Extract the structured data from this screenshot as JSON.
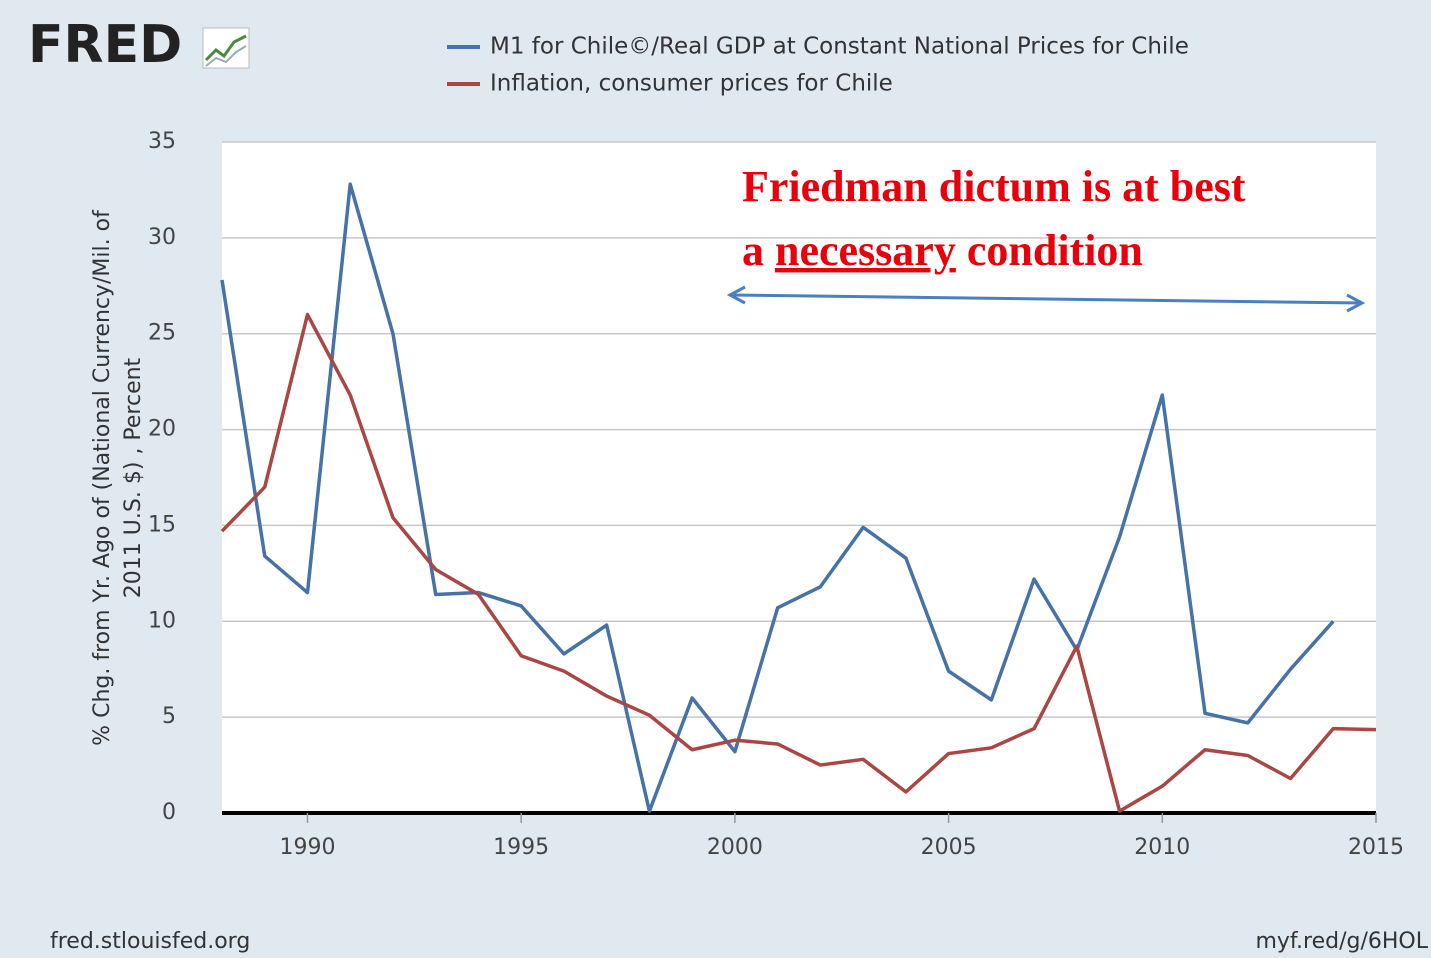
{
  "logo": "FRED",
  "footer": {
    "left": "fred.stlouisfed.org",
    "right": "myf.red/g/6HOL"
  },
  "chart_data": {
    "type": "line",
    "y_label": [
      "% Chg. from Yr. Ago of (National Currency/Mil. of",
      "2011 U.S. $) , Percent"
    ],
    "annotation": {
      "line1": "Friedman dictum is at best",
      "line2": [
        "a ",
        "necessary",
        " condition"
      ]
    },
    "x": [
      1988,
      1989,
      1990,
      1991,
      1992,
      1993,
      1994,
      1995,
      1996,
      1997,
      1998,
      1999,
      2000,
      2001,
      2002,
      2003,
      2004,
      2005,
      2006,
      2007,
      2008,
      2009,
      2010,
      2011,
      2012,
      2013,
      2014,
      2015
    ],
    "series": [
      {
        "name": "M1 for Chile©/Real GDP at Constant National Prices for Chile",
        "color": "#4572a7",
        "values": [
          27.8,
          13.4,
          11.5,
          32.8,
          25.0,
          11.4,
          11.5,
          10.8,
          8.3,
          9.8,
          0.1,
          6.0,
          3.2,
          10.7,
          11.8,
          14.9,
          13.3,
          7.4,
          5.9,
          12.2,
          8.5,
          14.4,
          21.8,
          5.2,
          4.7,
          7.5,
          10.0,
          null
        ]
      },
      {
        "name": "Inflation, consumer prices for Chile",
        "color": "#aa4643",
        "values": [
          14.7,
          17.0,
          26.0,
          21.8,
          15.4,
          12.7,
          11.4,
          8.2,
          7.4,
          6.1,
          5.1,
          3.3,
          3.8,
          3.6,
          2.5,
          2.8,
          1.1,
          3.1,
          3.4,
          4.4,
          8.7,
          0.1,
          1.4,
          3.3,
          3.0,
          1.8,
          4.4,
          4.35
        ]
      }
    ],
    "xlim": [
      1988,
      2015
    ],
    "xticks": [
      1990,
      1995,
      2000,
      2005,
      2010,
      2015
    ],
    "ylim": [
      0,
      35
    ],
    "yticks": [
      0,
      5,
      10,
      15,
      20,
      25,
      30,
      35
    ],
    "grid": true
  }
}
